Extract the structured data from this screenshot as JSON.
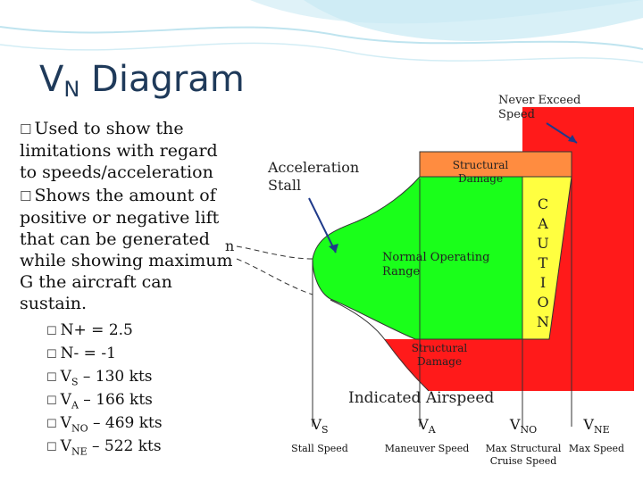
{
  "title": {
    "main": "V",
    "sub": "N",
    "rest": "Diagram"
  },
  "bullets": [
    {
      "icon": "checkbox-icon",
      "text": "Used to show the limitations with regard to speeds/acceleration"
    },
    {
      "icon": "checkbox-icon",
      "text": "Shows the amount of positive or negative lift that can be generated while showing maximum G the aircraft can sustain."
    }
  ],
  "sub_bullets": [
    {
      "pre": "N+ = 2.5",
      "sub": "",
      "post": ""
    },
    {
      "pre": "N- = -1",
      "sub": "",
      "post": ""
    },
    {
      "pre": "V",
      "sub": "S",
      "post": " – 130 kts"
    },
    {
      "pre": "V",
      "sub": "A",
      "post": " – 166 kts"
    },
    {
      "pre": "V",
      "sub": "NO",
      "post": " – 469 kts"
    },
    {
      "pre": "V",
      "sub": "NE",
      "post": " – 522 kts"
    }
  ],
  "diagram": {
    "never_exceed": "Never Exceed Speed",
    "acceleration_stall": "Acceleration Stall",
    "structural_damage_top": "Structural Damage",
    "structural_damage_bottom": "Structural Damage",
    "normal_range": "Normal Operating Range",
    "caution": [
      "C",
      "A",
      "U",
      "T",
      "I",
      "O",
      "N"
    ],
    "side_letter": "n",
    "x_axis_label": "Indicated Airspeed",
    "speeds": [
      {
        "pre": "V",
        "sub": "S",
        "desc": "Stall Speed"
      },
      {
        "pre": "V",
        "sub": "A",
        "desc": "Maneuver Speed"
      },
      {
        "pre": "V",
        "sub": "NO",
        "desc": "Max Structural Cruise Speed"
      },
      {
        "pre": "V",
        "sub": "NE",
        "desc": "Max Speed"
      }
    ],
    "colors": {
      "red": "#ff1a1a",
      "green": "#1aff1a",
      "orange": "#ff8c40",
      "yellow": "#ffff40",
      "white": "#ffffff"
    }
  }
}
